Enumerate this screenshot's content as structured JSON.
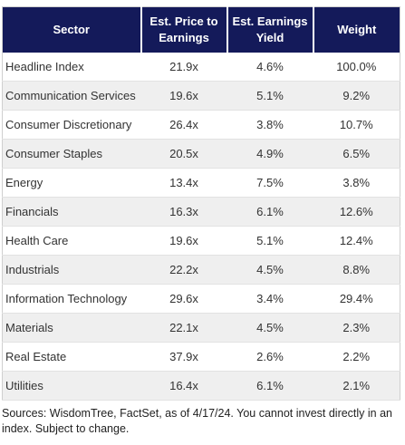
{
  "table": {
    "header": [
      "Sector",
      "Est. Price to Earnings",
      "Est. Earnings Yield",
      "Weight"
    ],
    "rows": [
      [
        "Headline Index",
        "21.9x",
        "4.6%",
        "100.0%"
      ],
      [
        "Communication Services",
        "19.6x",
        "5.1%",
        "9.2%"
      ],
      [
        "Consumer Discretionary",
        "26.4x",
        "3.8%",
        "10.7%"
      ],
      [
        "Consumer Staples",
        "20.5x",
        "4.9%",
        "6.5%"
      ],
      [
        "Energy",
        "13.4x",
        "7.5%",
        "3.8%"
      ],
      [
        "Financials",
        "16.3x",
        "6.1%",
        "12.6%"
      ],
      [
        "Health Care",
        "19.6x",
        "5.1%",
        "12.4%"
      ],
      [
        "Industrials",
        "22.2x",
        "4.5%",
        "8.8%"
      ],
      [
        "Information Technology",
        "29.6x",
        "3.4%",
        "29.4%"
      ],
      [
        "Materials",
        "22.1x",
        "4.5%",
        "2.3%"
      ],
      [
        "Real Estate",
        "37.9x",
        "2.6%",
        "2.2%"
      ],
      [
        "Utilities",
        "16.4x",
        "6.1%",
        "2.1%"
      ]
    ]
  },
  "source": "Sources: WisdomTree, FactSet, as of 4/17/24. You cannot invest directly in an index. Subject to change."
}
